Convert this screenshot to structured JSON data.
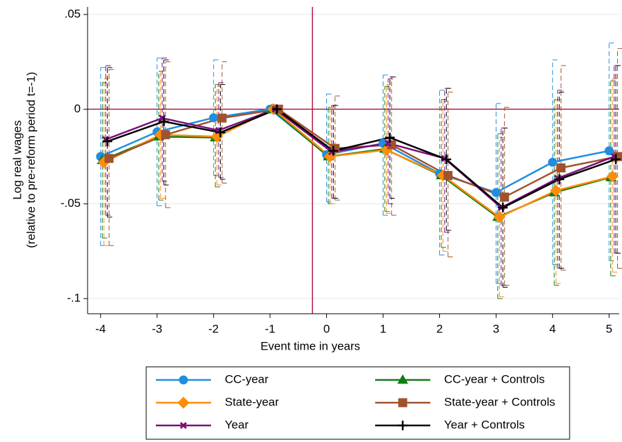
{
  "chart_data": {
    "type": "line",
    "xlabel": "Event time in years",
    "ylabel": [
      "Log real wages",
      "(relative to pre-reform period t=-1)"
    ],
    "xlim": [
      -4.23,
      5.18
    ],
    "xticks": [
      -4,
      -3,
      -2,
      -1,
      0,
      1,
      2,
      3,
      4,
      5
    ],
    "ylim": [
      -0.108,
      0.054
    ],
    "yticks": [
      {
        "value": 0.05,
        "label": ".05"
      },
      0,
      {
        "value": -0.05,
        "label": "-.05"
      },
      {
        "value": -0.1,
        "label": "-.1"
      }
    ],
    "grid": true,
    "refline_x": -0.25,
    "refline_y": 0,
    "refline_color": "#b5173f",
    "series": [
      {
        "name": "CC-year",
        "color": "#1f8ee0",
        "marker": "circle",
        "x": [
          -4,
          -3,
          -2,
          -1,
          0,
          1,
          2,
          3,
          4,
          5
        ],
        "values": [
          -0.025,
          -0.012,
          -0.0045,
          0,
          -0.024,
          -0.018,
          -0.034,
          -0.044,
          -0.028,
          -0.022
        ],
        "lower": [
          -0.072,
          -0.051,
          -0.035,
          null,
          -0.049,
          -0.056,
          -0.077,
          -0.092,
          -0.082,
          -0.08
        ],
        "upper": [
          0.022,
          0.027,
          0.026,
          null,
          0.008,
          0.018,
          0.01,
          0.003,
          0.026,
          0.035
        ]
      },
      {
        "name": "CC-year + Controls",
        "color": "#0d7d0d",
        "marker": "triangle",
        "x": [
          -3.97,
          -2.97,
          -1.97,
          -0.97,
          0.03,
          1.03,
          2.03,
          3.03,
          4.03,
          5.03
        ],
        "values": [
          -0.027,
          -0.0145,
          -0.015,
          0,
          -0.025,
          -0.021,
          -0.035,
          -0.057,
          -0.044,
          -0.036
        ],
        "lower": [
          -0.068,
          -0.048,
          -0.041,
          null,
          -0.05,
          -0.054,
          -0.073,
          -0.1,
          -0.093,
          -0.088
        ],
        "upper": [
          0.014,
          0.02,
          0.013,
          null,
          0.001,
          0.012,
          0.005,
          -0.013,
          0.005,
          0.015
        ]
      },
      {
        "name": "State-year",
        "color": "#ff8c0a",
        "marker": "diamond",
        "x": [
          -3.94,
          -2.94,
          -1.94,
          -0.94,
          0.06,
          1.06,
          2.06,
          3.06,
          4.06,
          5.06
        ],
        "values": [
          -0.028,
          -0.0135,
          -0.0145,
          0,
          -0.025,
          -0.0215,
          -0.035,
          -0.057,
          -0.043,
          -0.0355
        ],
        "lower": [
          -0.072,
          -0.047,
          -0.04,
          null,
          -0.05,
          -0.055,
          -0.075,
          -0.099,
          -0.092,
          -0.086
        ],
        "upper": [
          0.016,
          0.02,
          0.012,
          null,
          0.001,
          0.013,
          0.004,
          -0.015,
          0.005,
          0.016
        ]
      },
      {
        "name": "State-year + Controls",
        "color": "#a0522d",
        "marker": "square",
        "x": [
          -3.85,
          -2.85,
          -1.85,
          -0.85,
          0.15,
          1.15,
          2.15,
          3.15,
          4.15,
          5.15
        ],
        "values": [
          -0.026,
          -0.0135,
          -0.0047,
          0,
          -0.0207,
          -0.0188,
          -0.035,
          -0.0464,
          -0.031,
          -0.025
        ],
        "lower": [
          -0.072,
          -0.052,
          -0.039,
          null,
          -0.048,
          -0.056,
          -0.078,
          -0.093,
          -0.085,
          -0.084
        ],
        "upper": [
          0.021,
          0.025,
          0.025,
          null,
          0.007,
          0.017,
          0.009,
          0.001,
          0.023,
          0.032
        ]
      },
      {
        "name": "Year",
        "color": "#7a0e7a",
        "marker": "x",
        "x": [
          -3.91,
          -2.91,
          -1.91,
          -0.91,
          0.09,
          1.09,
          2.09,
          3.09,
          4.09,
          5.09
        ],
        "values": [
          -0.016,
          -0.0047,
          -0.0112,
          0,
          -0.0225,
          -0.018,
          -0.026,
          -0.052,
          -0.0365,
          -0.025
        ],
        "lower": [
          -0.056,
          -0.038,
          -0.036,
          null,
          -0.047,
          -0.05,
          -0.065,
          -0.093,
          -0.084,
          -0.076
        ],
        "upper": [
          0.023,
          0.027,
          0.014,
          null,
          0.002,
          0.016,
          0.011,
          -0.01,
          0.01,
          0.023
        ]
      },
      {
        "name": "Year + Controls",
        "color": "#000000",
        "marker": "plus",
        "x": [
          -3.88,
          -2.88,
          -1.88,
          -0.88,
          0.12,
          1.12,
          2.12,
          3.12,
          4.12,
          5.12
        ],
        "values": [
          -0.017,
          -0.0065,
          -0.0123,
          0,
          -0.022,
          -0.015,
          -0.0265,
          -0.052,
          -0.037,
          -0.0265
        ],
        "lower": [
          -0.057,
          -0.04,
          -0.037,
          null,
          -0.047,
          -0.047,
          -0.064,
          -0.094,
          -0.084,
          -0.076
        ],
        "upper": [
          0.022,
          0.026,
          0.013,
          null,
          0.002,
          0.017,
          0.011,
          -0.01,
          0.009,
          0.023
        ]
      }
    ]
  }
}
